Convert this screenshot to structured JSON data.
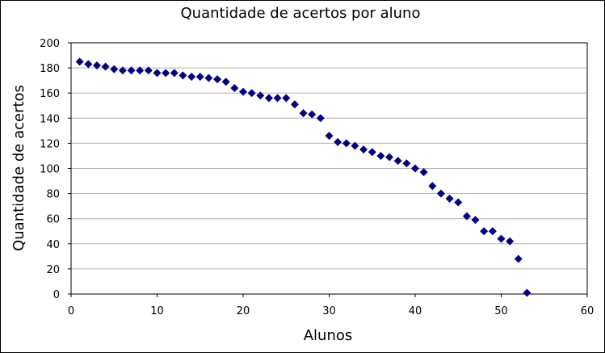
{
  "chart_data": {
    "type": "scatter",
    "title": "Quantidade de acertos por aluno",
    "xlabel": "Alunos",
    "ylabel": "Quantidade de acertos",
    "xlim": [
      0,
      60
    ],
    "ylim": [
      0,
      200
    ],
    "x_ticks": [
      "0",
      "10",
      "20",
      "30",
      "40",
      "50",
      "60"
    ],
    "y_ticks": [
      "0",
      "20",
      "40",
      "60",
      "80",
      "100",
      "120",
      "140",
      "160",
      "180",
      "200"
    ],
    "grid": "horizontal",
    "legend": "none",
    "marker": "diamond",
    "marker_color": "#000080",
    "points": [
      [
        1,
        185
      ],
      [
        2,
        183
      ],
      [
        3,
        182
      ],
      [
        4,
        181
      ],
      [
        5,
        179
      ],
      [
        6,
        178
      ],
      [
        7,
        178
      ],
      [
        8,
        178
      ],
      [
        9,
        178
      ],
      [
        10,
        176
      ],
      [
        11,
        176
      ],
      [
        12,
        176
      ],
      [
        13,
        174
      ],
      [
        14,
        173
      ],
      [
        15,
        173
      ],
      [
        16,
        172
      ],
      [
        17,
        171
      ],
      [
        18,
        169
      ],
      [
        19,
        164
      ],
      [
        20,
        161
      ],
      [
        21,
        160
      ],
      [
        22,
        158
      ],
      [
        23,
        156
      ],
      [
        24,
        156
      ],
      [
        25,
        156
      ],
      [
        26,
        151
      ],
      [
        27,
        144
      ],
      [
        28,
        143
      ],
      [
        29,
        140
      ],
      [
        30,
        126
      ],
      [
        31,
        121
      ],
      [
        32,
        120
      ],
      [
        33,
        118
      ],
      [
        34,
        115
      ],
      [
        35,
        113
      ],
      [
        36,
        110
      ],
      [
        37,
        109
      ],
      [
        38,
        106
      ],
      [
        39,
        104
      ],
      [
        40,
        100
      ],
      [
        41,
        97
      ],
      [
        42,
        86
      ],
      [
        43,
        80
      ],
      [
        44,
        76
      ],
      [
        45,
        73
      ],
      [
        46,
        62
      ],
      [
        47,
        59
      ],
      [
        48,
        50
      ],
      [
        49,
        50
      ],
      [
        50,
        44
      ],
      [
        51,
        42
      ],
      [
        52,
        28
      ],
      [
        53,
        1
      ]
    ]
  }
}
